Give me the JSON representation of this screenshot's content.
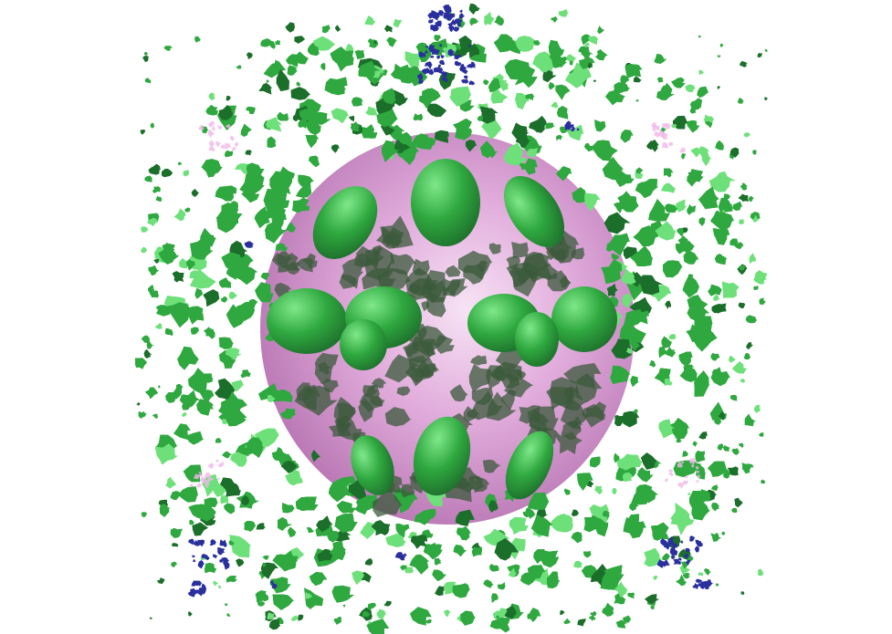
{
  "image": {
    "background_color": "#ffffff",
    "colors": {
      "sphere_light": "#f3d4ef",
      "sphere_mid": "#d99ad3",
      "sphere_dark": "#b36aae",
      "green_light": "#6ee07a",
      "green_mid": "#2fa83f",
      "green_dark": "#1b6f2a",
      "green_shadow": "#3b5a3b",
      "blue": "#2a2f9e",
      "pink_faint": "#f0b8ea"
    }
  }
}
